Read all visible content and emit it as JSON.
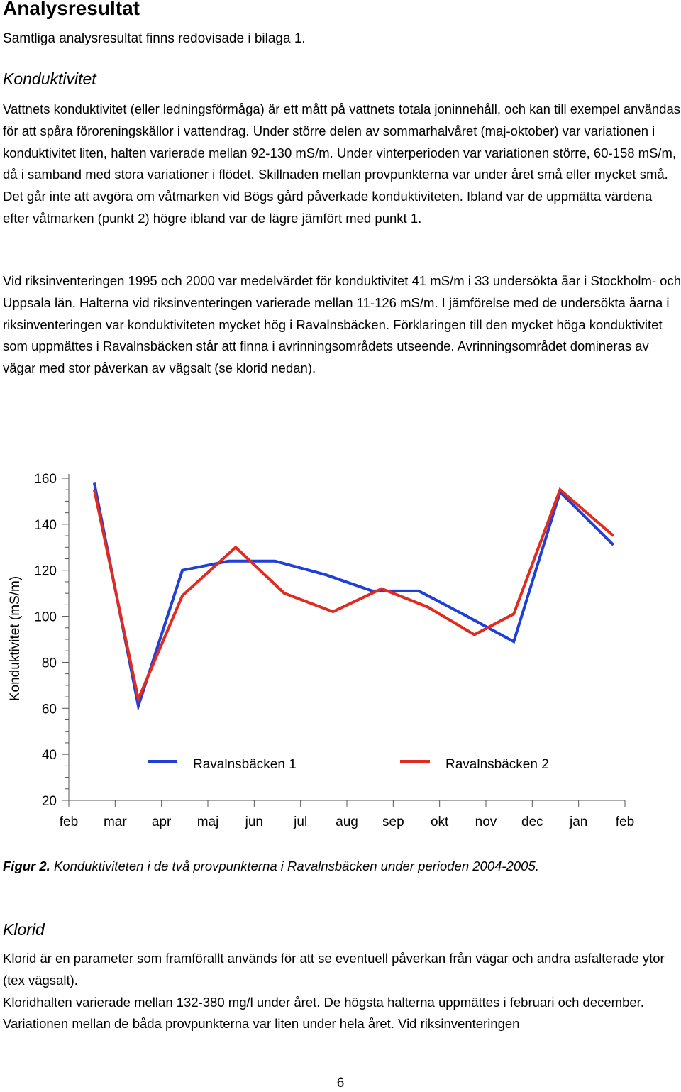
{
  "heading": "Analysresultat",
  "intro": "Samtliga analysresultat finns redovisade i bilaga 1.",
  "konduktivitet": {
    "title": "Konduktivitet",
    "paragraph1": "Vattnets konduktivitet (eller ledningsförmåga) är ett mått på vattnets totala joninnehåll, och kan till exempel användas för att spåra föroreningskällor i vattendrag. Under större delen av sommarhalvåret (maj-oktober) var variationen i konduktivitet liten, halten varierade mellan 92-130 mS/m. Under vinterperioden var variationen större, 60-158 mS/m, då i samband med stora variationer i flödet. Skillnaden mellan provpunkterna var under året små eller mycket små. Det går inte att avgöra om våtmarken vid Bögs gård påverkade konduktiviteten. Ibland var de uppmätta värdena efter våtmarken (punkt 2) högre ibland var de lägre jämfört med punkt 1.",
    "paragraph2": "Vid riksinventeringen 1995 och 2000 var medelvärdet för konduktivitet 41 mS/m i 33 undersökta åar i Stockholm- och Uppsala län. Halterna vid riksinventeringen varierade mellan 11-126 mS/m. I jämförelse med de undersökta åarna i riksinventeringen var konduktiviteten mycket hög i Ravalnsbäcken. Förklaringen till den mycket höga konduktivitet som uppmättes i Ravalnsbäcken står att finna i avrinningsområdets utseende. Avrinningsområdet domineras av vägar med stor påverkan av vägsalt (se klorid nedan)."
  },
  "chart_data": {
    "type": "line",
    "ylabel": "Konduktivitet (mS/m)",
    "ylim": [
      20,
      160
    ],
    "yticks": [
      20,
      40,
      60,
      80,
      100,
      120,
      140,
      160
    ],
    "xlim": [
      0,
      12
    ],
    "xticks": [
      "feb",
      "mar",
      "apr",
      "maj",
      "jun",
      "jul",
      "aug",
      "sep",
      "okt",
      "nov",
      "dec",
      "jan",
      "feb"
    ],
    "legend_position": "bottom",
    "series": [
      {
        "name": "Ravalnsbäcken 1",
        "color": "#1f3fd6",
        "x": [
          0.55,
          1.5,
          2.45,
          3.45,
          4.45,
          5.55,
          6.55,
          7.55,
          8.5,
          9.6,
          10.6,
          11.75
        ],
        "y": [
          158,
          61,
          120,
          124,
          124,
          118,
          111,
          111,
          101,
          89,
          154,
          131
        ]
      },
      {
        "name": "Ravalnsbäcken 2",
        "color": "#e02b20",
        "x": [
          0.55,
          1.5,
          2.45,
          3.6,
          4.65,
          5.7,
          6.75,
          7.75,
          8.75,
          9.6,
          10.6,
          11.75
        ],
        "y": [
          155,
          64,
          109,
          130,
          110,
          102,
          112,
          104,
          92,
          101,
          155,
          135
        ]
      }
    ]
  },
  "figure_caption": {
    "label": "Figur 2.",
    "text": " Konduktiviteten i de två provpunkterna i Ravalnsbäcken under perioden 2004-2005."
  },
  "klorid": {
    "title": "Klorid",
    "line1": "Klorid är en parameter som framförallt används för att se eventuell påverkan från vägar och andra asfalterade ytor (tex vägsalt).",
    "line2": "Kloridhalten varierade mellan 132-380 mg/l under året. De högsta halterna uppmättes i februari och december. Variationen mellan de båda provpunkterna var liten under hela året. Vid riksinventeringen"
  },
  "page_number": "6"
}
